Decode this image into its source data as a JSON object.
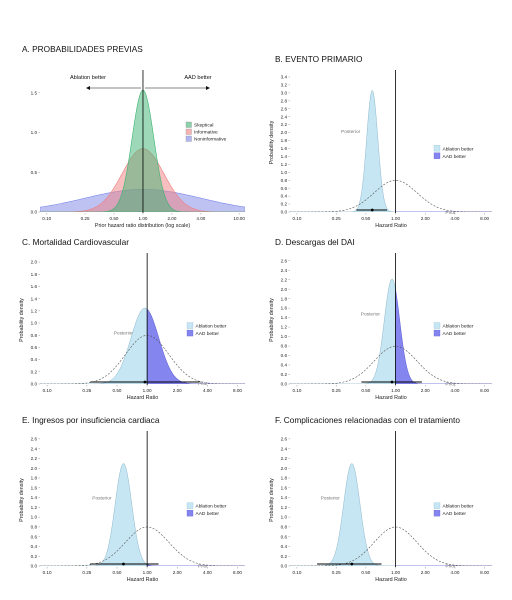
{
  "chart_data": [
    {
      "id": "A",
      "type": "area",
      "title": "A. PROBABILIDADES PREVIAS",
      "xlabel": "Prior hazard ratio distribution (log scale)",
      "ylabel": "",
      "x_scale": "log",
      "xticks": [
        "0.10",
        "0.25",
        "0.50",
        "1.00",
        "2.00",
        "4.00",
        "10.00"
      ],
      "xtick_values": [
        0.1,
        0.25,
        0.5,
        1.0,
        2.0,
        4.0,
        10.0
      ],
      "xlim": [
        0.085,
        11.5
      ],
      "yticks": [
        "0.0",
        "0.5",
        "1.0",
        "1.5"
      ],
      "ylim": [
        0,
        1.75
      ],
      "arrow_left": "Ablation better",
      "arrow_right": "AAD better",
      "legend_position": "right",
      "series": [
        {
          "name": "Skeptical",
          "kind": "density",
          "mean_hr": 1.0,
          "sd_log": 0.26,
          "color": "#3cb371"
        },
        {
          "name": "Informative",
          "kind": "density",
          "mean_hr": 1.0,
          "sd_log": 0.5,
          "color": "#f08080"
        },
        {
          "name": "Noninformative",
          "kind": "density",
          "mean_hr": 1.0,
          "sd_log": 1.4,
          "color": "#7b86e8"
        }
      ]
    },
    {
      "id": "B",
      "type": "area",
      "title": "B. EVENTO PRIMARIO",
      "xlabel": "Hazard Ratio",
      "ylabel": "Probability density",
      "x_scale": "log",
      "xticks": [
        "0.10",
        "0.25",
        "0.50",
        "1.00",
        "2.00",
        "4.00",
        "8.00"
      ],
      "xtick_values": [
        0.1,
        0.25,
        0.5,
        1.0,
        2.0,
        4.0,
        8.0
      ],
      "xlim": [
        0.085,
        9.5
      ],
      "yticks": [
        "0.0",
        "0.2",
        "0.4",
        "0.6",
        "0.8",
        "1.0",
        "1.2",
        "1.4",
        "1.6",
        "1.8",
        "2.0",
        "2.2",
        "2.4",
        "2.6",
        "2.8",
        "3.0",
        "3.2",
        "3.4"
      ],
      "ylim": [
        0,
        3.5
      ],
      "legend": [
        "Ablation better",
        "AAD better"
      ],
      "posterior_label": "Posterior",
      "prior_label": "Prior",
      "posterior": {
        "mean_hr": 0.58,
        "sd_log": 0.13
      },
      "prior": {
        "mean_hr": 1.0,
        "sd_log": 0.5
      },
      "ci": [
        0.4,
        0.82
      ],
      "point": 0.58
    },
    {
      "id": "C",
      "type": "area",
      "title": "C. Mortalidad Cardiovascular",
      "xlabel": "Hazard Ratio",
      "ylabel": "Probability density",
      "x_scale": "log",
      "xticks": [
        "0.10",
        "0.25",
        "0.50",
        "1.00",
        "2.00",
        "4.00",
        "8.00"
      ],
      "xtick_values": [
        0.1,
        0.25,
        0.5,
        1.0,
        2.0,
        4.0,
        8.0
      ],
      "xlim": [
        0.085,
        9.5
      ],
      "yticks": [
        "0.0",
        "0.2",
        "0.4",
        "0.6",
        "0.8",
        "1.0",
        "1.2",
        "1.4",
        "1.6",
        "1.8",
        "2.0"
      ],
      "ylim": [
        0,
        2.1
      ],
      "legend": [
        "Ablation better",
        "AAD better"
      ],
      "posterior_label": "Posterior",
      "prior_label": "Prior",
      "posterior": {
        "mean_hr": 0.95,
        "sd_log": 0.32
      },
      "prior": {
        "mean_hr": 1.0,
        "sd_log": 0.5
      },
      "ci": [
        0.27,
        3.4
      ],
      "point": 0.95
    },
    {
      "id": "D",
      "type": "area",
      "title": "D. Descargas del DAI",
      "xlabel": "Hazard Ratio",
      "ylabel": "Probability density",
      "x_scale": "log",
      "xticks": [
        "0.10",
        "0.25",
        "0.50",
        "1.00",
        "2.00",
        "4.00",
        "8.00"
      ],
      "xtick_values": [
        0.1,
        0.25,
        0.5,
        1.0,
        2.0,
        4.0,
        8.0
      ],
      "xlim": [
        0.085,
        9.5
      ],
      "yticks": [
        "0.0",
        "0.2",
        "0.4",
        "0.6",
        "0.8",
        "1.0",
        "1.2",
        "1.4",
        "1.6",
        "1.8",
        "2.0",
        "2.2",
        "2.4",
        "2.6"
      ],
      "ylim": [
        0,
        2.7
      ],
      "legend": [
        "Ablation better",
        "AAD better"
      ],
      "posterior_label": "Posterior",
      "prior_label": "Prior",
      "posterior": {
        "mean_hr": 0.92,
        "sd_log": 0.18
      },
      "prior": {
        "mean_hr": 1.0,
        "sd_log": 0.5
      },
      "ci": [
        0.45,
        1.85
      ],
      "point": 0.92
    },
    {
      "id": "E",
      "type": "area",
      "title": "E. Ingresos por insuficiencia cardiaca",
      "xlabel": "Hazard Ratio",
      "ylabel": "Probability density",
      "x_scale": "log",
      "xticks": [
        "0.10",
        "0.25",
        "0.50",
        "1.00",
        "2.00",
        "4.00",
        "8.00"
      ],
      "xtick_values": [
        0.1,
        0.25,
        0.5,
        1.0,
        2.0,
        4.0,
        8.0
      ],
      "xlim": [
        0.085,
        9.5
      ],
      "yticks": [
        "0.0",
        "0.2",
        "0.4",
        "0.6",
        "0.8",
        "1.0",
        "1.2",
        "1.4",
        "1.6",
        "1.8",
        "2.0",
        "2.2",
        "2.4",
        "2.6"
      ],
      "ylim": [
        0,
        2.7
      ],
      "legend": [
        "Ablation better",
        "AAD better"
      ],
      "posterior_label": "Posterior",
      "prior_label": "Prior",
      "posterior": {
        "mean_hr": 0.58,
        "sd_log": 0.19
      },
      "prior": {
        "mean_hr": 1.0,
        "sd_log": 0.5
      },
      "ci": [
        0.27,
        1.3
      ],
      "point": 0.58
    },
    {
      "id": "F",
      "type": "area",
      "title": "F. Complicaciones  relacionadas con el tratamiento",
      "xlabel": "Hazard Ratio",
      "ylabel": "Probability density",
      "x_scale": "log",
      "xticks": [
        "0.10",
        "0.25",
        "0.50",
        "1.00",
        "2.00",
        "4.00",
        "8.00"
      ],
      "xtick_values": [
        0.1,
        0.25,
        0.5,
        1.0,
        2.0,
        4.0,
        8.0
      ],
      "xlim": [
        0.085,
        9.5
      ],
      "yticks": [
        "0.0",
        "0.2",
        "0.4",
        "0.6",
        "0.8",
        "1.0",
        "1.2",
        "1.4",
        "1.6",
        "1.8",
        "2.0",
        "2.2",
        "2.4",
        "2.6"
      ],
      "ylim": [
        0,
        2.7
      ],
      "legend": [
        "Ablation better",
        "AAD better"
      ],
      "posterior_label": "Posterior",
      "prior_label": "Prior",
      "posterior": {
        "mean_hr": 0.36,
        "sd_log": 0.19
      },
      "prior": {
        "mean_hr": 1.0,
        "sd_log": 0.5
      },
      "ci": [
        0.16,
        0.72
      ],
      "point": 0.36
    }
  ],
  "colors": {
    "ablation": "#c6e6f3",
    "ablation_edge": "#8fb8cc",
    "aad": "#8585f0",
    "aad_edge": "#5a5ad0",
    "prior_line": "#555555",
    "ci": "#000000"
  }
}
